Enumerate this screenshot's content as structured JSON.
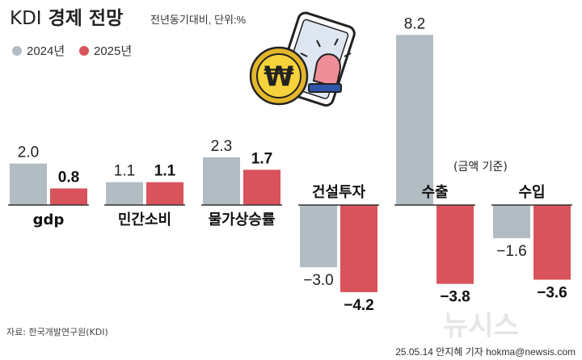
{
  "header": {
    "title_brand": "KDI",
    "title_main": "경제 전망",
    "subtitle": "전년동기대비, 단위:%"
  },
  "colors": {
    "series_2024": "#b2bcc3",
    "series_2025": "#d9535c",
    "baseline": "#333333"
  },
  "footer": {
    "source": "자료: 한국개발연구원(KDI)",
    "credit": "25.05.14 안지혜 기자 hokma@newsis.com",
    "watermark": "뉴시스"
  },
  "illustration": {
    "coin_symbol": "₩",
    "icons": [
      "won-coin-icon",
      "smartphone-icon",
      "alarm-siren-icon"
    ]
  },
  "chart_data": {
    "type": "bar",
    "title": "KDI 경제 전망",
    "subtitle": "전년동기대비, 단위:%",
    "categories": [
      "gdp",
      "민간소비",
      "물가상승률",
      "건설투자",
      "수출",
      "수입"
    ],
    "series": [
      {
        "name": "2024년",
        "values": [
          2.0,
          1.1,
          2.3,
          -3.0,
          8.2,
          -1.6
        ],
        "labels": [
          "2.0",
          "1.1",
          "2.3",
          "−3.0",
          "8.2",
          "−1.6"
        ]
      },
      {
        "name": "2025년",
        "values": [
          0.8,
          1.1,
          1.7,
          -4.2,
          -3.8,
          -3.6
        ],
        "labels": [
          "0.8",
          "1.1",
          "1.7",
          "−4.2",
          "−3.8",
          "−3.6"
        ]
      }
    ],
    "annotation": "(금액 기준)",
    "xlabel": "",
    "ylabel": "",
    "grid": false,
    "legend": "top-left"
  }
}
